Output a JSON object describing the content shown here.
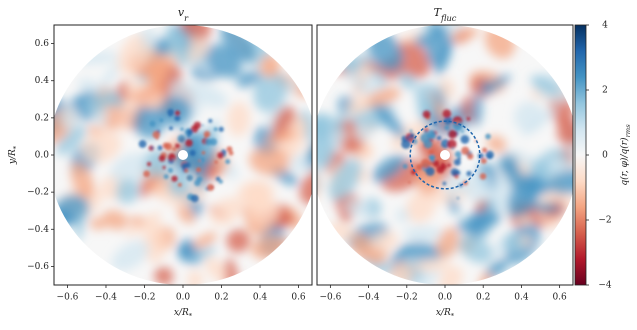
{
  "chart_data": [
    {
      "type": "heatmap",
      "title": "v_r",
      "xlabel": "x/R_*",
      "ylabel": "y/R_*",
      "xlim": [
        -0.67,
        0.67
      ],
      "xticks": [
        {
          "value": -0.6,
          "label": "−0.6"
        },
        {
          "value": -0.4,
          "label": "−0.4"
        },
        {
          "value": -0.2,
          "label": "−0.2"
        },
        {
          "value": 0,
          "label": "0.0"
        },
        0.2,
        0.4,
        0.6
      ],
      "ylim": [
        -0.7,
        0.7
      ],
      "yticks": [
        {
          "value": -0.6,
          "label": "−0.6"
        },
        {
          "value": -0.4,
          "label": "−0.4"
        },
        {
          "value": -0.2,
          "label": "−0.2"
        },
        {
          "value": 0,
          "label": "0.0"
        },
        0.2,
        0.4,
        0.6
      ]
    },
    {
      "type": "heatmap",
      "title": "T_fluc",
      "xlabel": "x/R_*",
      "xlim": [
        -0.67,
        0.67
      ],
      "xticks": [
        {
          "value": -0.6,
          "label": "−0.6"
        },
        {
          "value": -0.4,
          "label": "−0.4"
        },
        {
          "value": -0.2,
          "label": "−0.2"
        },
        {
          "value": 0,
          "label": "0.0"
        },
        0.2,
        0.4,
        0.6
      ],
      "ylim": [
        -0.7,
        0.7
      ]
    }
  ],
  "colorbar": {
    "label": "q(r, φ)/q(r)_rms",
    "ylim": [
      -4,
      4
    ],
    "yticks": [
      {
        "value": -4,
        "label": "−4"
      },
      {
        "value": -2,
        "label": "−2"
      },
      0,
      2,
      4
    ],
    "colors": [
      "#67001f",
      "#b2182b",
      "#d6604d",
      "#f4a582",
      "#fddbc7",
      "#f7f7f7",
      "#d1e5f0",
      "#92c5de",
      "#4393c3",
      "#2166ac",
      "#053061"
    ]
  }
}
